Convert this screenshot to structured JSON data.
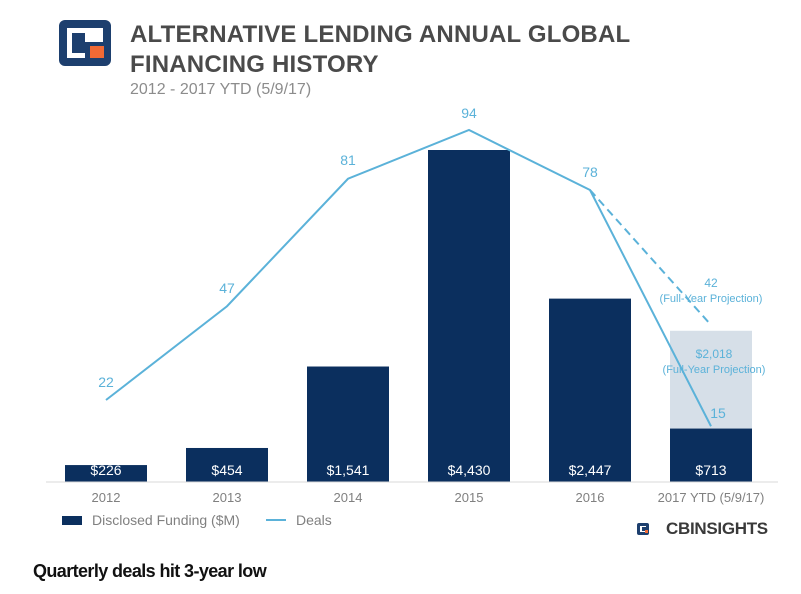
{
  "header": {
    "title": "ALTERNATIVE LENDING ANNUAL GLOBAL FINANCING HISTORY",
    "subtitle": "2012 - 2017 YTD (5/9/17)"
  },
  "brand": {
    "text": "CBINSIGHTS",
    "logo_icon": "cb-logo-icon"
  },
  "footer": {
    "caption": "Quarterly deals hit 3-year low"
  },
  "colors": {
    "bar": "#0b2f5e",
    "projection_bar": "#d6dfe8",
    "line": "#5bb2d9",
    "logo_dark": "#1d3f6e",
    "logo_accent": "#f26a35"
  },
  "chart_data": {
    "type": "bar",
    "categories": [
      "2012",
      "2013",
      "2014",
      "2015",
      "2016",
      "2017 YTD (5/9/17)"
    ],
    "series": [
      {
        "name": "Disclosed Funding ($M)",
        "type": "bar",
        "values": [
          226,
          454,
          1541,
          4430,
          2447,
          713
        ],
        "labels": [
          "$226",
          "$454",
          "$1,541",
          "$4,430",
          "$2,447",
          "$713"
        ]
      },
      {
        "name": "Deals",
        "type": "line",
        "values": [
          22,
          47,
          81,
          94,
          78,
          15
        ],
        "labels": [
          "22",
          "47",
          "81",
          "94",
          "78",
          "15"
        ]
      }
    ],
    "projections": {
      "funding": {
        "value": 2018,
        "label": "$2,018",
        "note": "(Full-Year Projection)"
      },
      "deals": {
        "value": 42,
        "label": "42",
        "note": "(Full-Year Projection)"
      }
    },
    "legend_position": "bottom-left",
    "grid": false
  }
}
